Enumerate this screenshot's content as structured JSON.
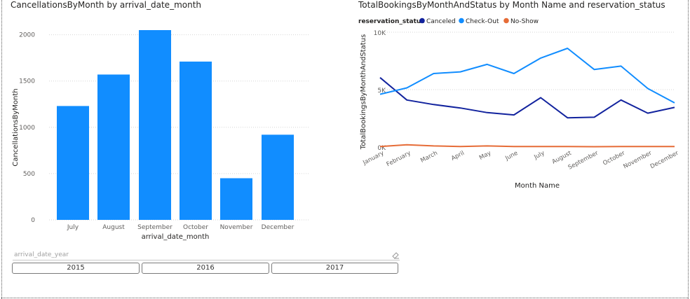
{
  "bar_chart": {
    "title": "CancellationsByMonth by arrival_date_month"
  },
  "line_chart": {
    "title": "TotalBookingsByMonthAndStatus by Month Name and reservation_status",
    "legend_title": "reservation_status"
  },
  "slicer": {
    "label": "arrival_date_year",
    "options": [
      "2015",
      "2016",
      "2017"
    ]
  },
  "chart_data": [
    {
      "type": "bar",
      "title": "CancellationsByMonth by arrival_date_month",
      "xlabel": "arrival_date_month",
      "ylabel": "CancellationsByMonth",
      "categories": [
        "July",
        "August",
        "September",
        "October",
        "November",
        "December"
      ],
      "values": [
        1230,
        1570,
        2050,
        1710,
        450,
        920
      ],
      "ylim": [
        0,
        2100
      ],
      "yticks": [
        0,
        500,
        1000,
        1500,
        2000
      ],
      "ytick_labels": [
        "0",
        "500",
        "1000",
        "1500",
        "2000"
      ],
      "grid": true,
      "color": "#118DFF"
    },
    {
      "type": "line",
      "title": "TotalBookingsByMonthAndStatus by Month Name and reservation_status",
      "xlabel": "Month Name",
      "ylabel": "TotalBookingsByMonthAndStatus",
      "categories": [
        "January",
        "February",
        "March",
        "April",
        "May",
        "June",
        "July",
        "August",
        "September",
        "October",
        "November",
        "December"
      ],
      "ylim": [
        0,
        10000
      ],
      "yticks": [
        0,
        5000,
        10000
      ],
      "ytick_labels": [
        "0K",
        "5K",
        "10K"
      ],
      "grid": true,
      "legend_title": "reservation_status",
      "legend_position": "top-left",
      "series": [
        {
          "name": "Canceled",
          "color": "#12239E",
          "values": [
            6050,
            4100,
            3700,
            3400,
            3000,
            2800,
            4300,
            2550,
            2600,
            4100,
            2950,
            3450
          ]
        },
        {
          "name": "Check-Out",
          "color": "#118DFF",
          "values": [
            4600,
            5150,
            6400,
            6550,
            7200,
            6400,
            7750,
            8600,
            6750,
            7050,
            5100,
            3850
          ]
        },
        {
          "name": "No-Show",
          "color": "#E66C37",
          "values": [
            50,
            200,
            100,
            50,
            100,
            50,
            50,
            50,
            30,
            50,
            40,
            50
          ]
        }
      ]
    }
  ]
}
